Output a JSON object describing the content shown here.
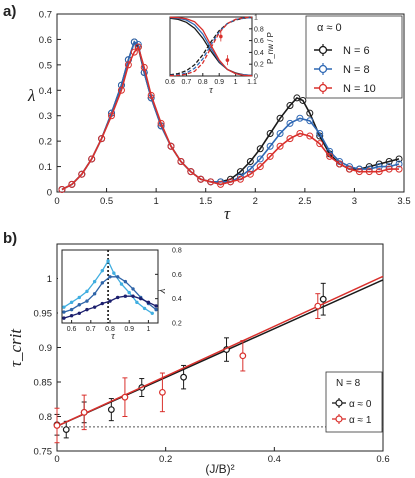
{
  "chart_data": [
    {
      "panel_label": "a)",
      "type": "line",
      "xlabel": "τ",
      "ylabel": "λ",
      "xlim": [
        0,
        3.5
      ],
      "ylim": [
        0,
        0.7
      ],
      "xticks": [
        "0",
        "0.5",
        "1",
        "1.5",
        "2",
        "2.5",
        "3",
        "3.5"
      ],
      "yticks": [
        "0",
        "0.1",
        "0.2",
        "0.3",
        "0.4",
        "0.5",
        "0.6",
        "0.7"
      ],
      "legend": {
        "title": "α ≈ 0",
        "placement": "top-right",
        "entries": [
          "N = 6",
          "N = 8",
          "N = 10"
        ]
      },
      "series": [
        {
          "name": "N = 6",
          "color": "#1a1a1a",
          "x": [
            0.05,
            0.15,
            0.25,
            0.35,
            0.45,
            0.55,
            0.65,
            0.72,
            0.78,
            0.82,
            0.88,
            0.95,
            1.05,
            1.15,
            1.25,
            1.35,
            1.45,
            1.55,
            1.65,
            1.75,
            1.85,
            1.95,
            2.05,
            2.15,
            2.25,
            2.35,
            2.42,
            2.48,
            2.55,
            2.65,
            2.75,
            2.85,
            2.95,
            3.05,
            3.15,
            3.25,
            3.35,
            3.45
          ],
          "y": [
            0.01,
            0.03,
            0.07,
            0.13,
            0.21,
            0.31,
            0.42,
            0.52,
            0.59,
            0.57,
            0.47,
            0.37,
            0.26,
            0.18,
            0.12,
            0.08,
            0.05,
            0.04,
            0.04,
            0.05,
            0.08,
            0.12,
            0.17,
            0.23,
            0.29,
            0.34,
            0.37,
            0.36,
            0.31,
            0.22,
            0.15,
            0.11,
            0.09,
            0.09,
            0.1,
            0.11,
            0.12,
            0.13
          ]
        },
        {
          "name": "N = 8",
          "color": "#2f68b4",
          "x": [
            0.05,
            0.15,
            0.25,
            0.35,
            0.45,
            0.55,
            0.65,
            0.72,
            0.78,
            0.82,
            0.88,
            0.95,
            1.05,
            1.15,
            1.25,
            1.35,
            1.45,
            1.55,
            1.65,
            1.75,
            1.85,
            1.95,
            2.05,
            2.15,
            2.25,
            2.35,
            2.45,
            2.55,
            2.65,
            2.75,
            2.85,
            2.95,
            3.05,
            3.15,
            3.25,
            3.35,
            3.45
          ],
          "y": [
            0.01,
            0.03,
            0.07,
            0.13,
            0.21,
            0.31,
            0.42,
            0.52,
            0.59,
            0.58,
            0.47,
            0.37,
            0.26,
            0.18,
            0.12,
            0.08,
            0.05,
            0.04,
            0.04,
            0.04,
            0.06,
            0.09,
            0.13,
            0.18,
            0.23,
            0.27,
            0.29,
            0.28,
            0.23,
            0.16,
            0.12,
            0.1,
            0.09,
            0.09,
            0.1,
            0.1,
            0.11
          ]
        },
        {
          "name": "N = 10",
          "color": "#d9302c",
          "x": [
            0.05,
            0.15,
            0.25,
            0.35,
            0.45,
            0.55,
            0.65,
            0.72,
            0.78,
            0.82,
            0.88,
            0.95,
            1.05,
            1.15,
            1.25,
            1.35,
            1.45,
            1.55,
            1.65,
            1.75,
            1.85,
            1.95,
            2.05,
            2.15,
            2.25,
            2.35,
            2.45,
            2.55,
            2.65,
            2.75,
            2.85,
            2.95,
            3.05,
            3.15,
            3.25,
            3.35,
            3.45
          ],
          "y": [
            0.01,
            0.03,
            0.07,
            0.13,
            0.21,
            0.3,
            0.4,
            0.5,
            0.55,
            0.57,
            0.49,
            0.38,
            0.27,
            0.18,
            0.12,
            0.08,
            0.05,
            0.04,
            0.03,
            0.04,
            0.05,
            0.07,
            0.1,
            0.14,
            0.18,
            0.21,
            0.23,
            0.22,
            0.19,
            0.14,
            0.11,
            0.09,
            0.08,
            0.08,
            0.08,
            0.09,
            0.09
          ]
        }
      ],
      "inset": {
        "xlabel": "τ",
        "ylabel": "P_nw / P",
        "xlim": [
          0.6,
          1.1
        ],
        "ylim": [
          0,
          1
        ],
        "xticks": [
          "0.6",
          "0.7",
          "0.8",
          "0.9",
          "1",
          "1.1"
        ],
        "yticks": [
          "0",
          "0.2",
          "0.4",
          "0.6",
          "0.8",
          "1"
        ],
        "series": [
          {
            "name": "N = 6",
            "color": "#1a1a1a",
            "falling": {
              "x": [
                0.6,
                0.65,
                0.7,
                0.75,
                0.8,
                0.85,
                0.9,
                0.95,
                1.0,
                1.05,
                1.1
              ],
              "y": [
                0.98,
                0.96,
                0.91,
                0.81,
                0.64,
                0.42,
                0.23,
                0.11,
                0.05,
                0.02,
                0.01
              ]
            },
            "rising": {
              "x": [
                0.6,
                0.65,
                0.7,
                0.75,
                0.8,
                0.85,
                0.9,
                0.95,
                1.0,
                1.05,
                1.1
              ],
              "y": [
                0.02,
                0.04,
                0.09,
                0.19,
                0.36,
                0.58,
                0.77,
                0.89,
                0.95,
                0.98,
                0.99
              ]
            }
          },
          {
            "name": "N = 8",
            "color": "#2f68b4",
            "falling": {
              "x": [
                0.6,
                0.65,
                0.7,
                0.75,
                0.8,
                0.85,
                0.9,
                0.95,
                1.0,
                1.05,
                1.1
              ],
              "y": [
                0.99,
                0.98,
                0.95,
                0.87,
                0.71,
                0.47,
                0.25,
                0.11,
                0.04,
                0.02,
                0.01
              ]
            },
            "rising": {
              "x": [
                0.6,
                0.65,
                0.7,
                0.75,
                0.8,
                0.85,
                0.9,
                0.95,
                1.0,
                1.05,
                1.1
              ],
              "y": [
                0.01,
                0.02,
                0.05,
                0.13,
                0.29,
                0.53,
                0.75,
                0.89,
                0.96,
                0.98,
                0.99
              ]
            }
          },
          {
            "name": "N = 10",
            "color": "#d9302c",
            "falling": {
              "x": [
                0.6,
                0.65,
                0.7,
                0.75,
                0.8,
                0.85,
                0.9,
                0.95,
                1.0,
                1.05,
                1.1
              ],
              "y": [
                0.995,
                0.99,
                0.97,
                0.92,
                0.78,
                0.52,
                0.27,
                0.11,
                0.04,
                0.01,
                0.005
              ]
            },
            "rising": {
              "x": [
                0.6,
                0.65,
                0.7,
                0.75,
                0.8,
                0.85,
                0.9,
                0.95,
                1.0,
                1.05,
                1.1
              ],
              "y": [
                0.005,
                0.01,
                0.03,
                0.08,
                0.22,
                0.48,
                0.73,
                0.89,
                0.96,
                0.99,
                0.995
              ]
            },
            "points": {
              "x": [
                0.91,
                0.95
              ],
              "y": [
                0.67,
                0.27
              ]
            }
          }
        ]
      }
    },
    {
      "panel_label": "b)",
      "type": "line",
      "xlabel": "(J/B)²",
      "ylabel": "τ_crit",
      "xlim": [
        0,
        0.6
      ],
      "ylim": [
        0.75,
        1.05
      ],
      "xticks": [
        "0",
        "0.2",
        "0.4",
        "0.6"
      ],
      "yticks": [
        "0.75",
        "0.8",
        "0.85",
        "0.9",
        "0.95",
        "1"
      ],
      "reference_line_y": 0.785,
      "legend": {
        "title": "N = 8",
        "placement": "bottom-right",
        "entries": [
          "α ≈ 0",
          "α ≈ 1"
        ]
      },
      "series": [
        {
          "name": "α ≈ 0",
          "color": "#1a1a1a",
          "x": [
            0.0,
            0.017,
            0.05,
            0.1,
            0.156,
            0.233,
            0.312,
            0.49
          ],
          "y": [
            0.788,
            0.781,
            0.806,
            0.81,
            0.842,
            0.857,
            0.897,
            0.97
          ],
          "err": [
            0.015,
            0.012,
            0.015,
            0.016,
            0.013,
            0.017,
            0.017,
            0.023
          ],
          "fit": {
            "x": [
              0,
              0.6
            ],
            "y": [
              0.786,
              0.998
            ]
          }
        },
        {
          "name": "α ≈ 1",
          "color": "#d9302c",
          "x": [
            0.0,
            0.05,
            0.125,
            0.194,
            0.342,
            0.48
          ],
          "y": [
            0.787,
            0.806,
            0.828,
            0.835,
            0.888,
            0.96
          ],
          "err": [
            0.025,
            0.025,
            0.028,
            0.028,
            0.022,
            0.018
          ],
          "fit": {
            "x": [
              0,
              0.6
            ],
            "y": [
              0.786,
              1.003
            ]
          }
        }
      ],
      "inset": {
        "xlabel": "τ",
        "ylabel": "λ",
        "xlim": [
          0.55,
          1.05
        ],
        "ylim": [
          0.2,
          0.8
        ],
        "xticks": [
          "0.6",
          "0.7",
          "0.8",
          "0.9",
          "1"
        ],
        "yticks": [
          "0.2",
          "0.4",
          "0.6",
          "0.8"
        ],
        "vline_x": 0.79,
        "series": [
          {
            "name": "light",
            "color": "#40aee0",
            "x": [
              0.56,
              0.6,
              0.64,
              0.68,
              0.72,
              0.76,
              0.79,
              0.82,
              0.86,
              0.9,
              0.94,
              0.98,
              1.02
            ],
            "y": [
              0.33,
              0.37,
              0.41,
              0.46,
              0.54,
              0.63,
              0.71,
              0.61,
              0.52,
              0.45,
              0.37,
              0.32,
              0.28
            ]
          },
          {
            "name": "medium",
            "color": "#2e64a8",
            "x": [
              0.56,
              0.6,
              0.64,
              0.68,
              0.72,
              0.76,
              0.8,
              0.84,
              0.88,
              0.92,
              0.96,
              1.0,
              1.04
            ],
            "y": [
              0.29,
              0.31,
              0.35,
              0.38,
              0.44,
              0.53,
              0.58,
              0.58,
              0.54,
              0.48,
              0.41,
              0.36,
              0.31
            ]
          },
          {
            "name": "dark",
            "color": "#1c1f6e",
            "x": [
              0.56,
              0.6,
              0.64,
              0.68,
              0.72,
              0.76,
              0.8,
              0.84,
              0.88,
              0.92,
              0.96,
              1.0,
              1.04
            ],
            "y": [
              0.24,
              0.26,
              0.28,
              0.31,
              0.33,
              0.36,
              0.38,
              0.41,
              0.42,
              0.42,
              0.4,
              0.37,
              0.34
            ]
          }
        ]
      }
    }
  ]
}
